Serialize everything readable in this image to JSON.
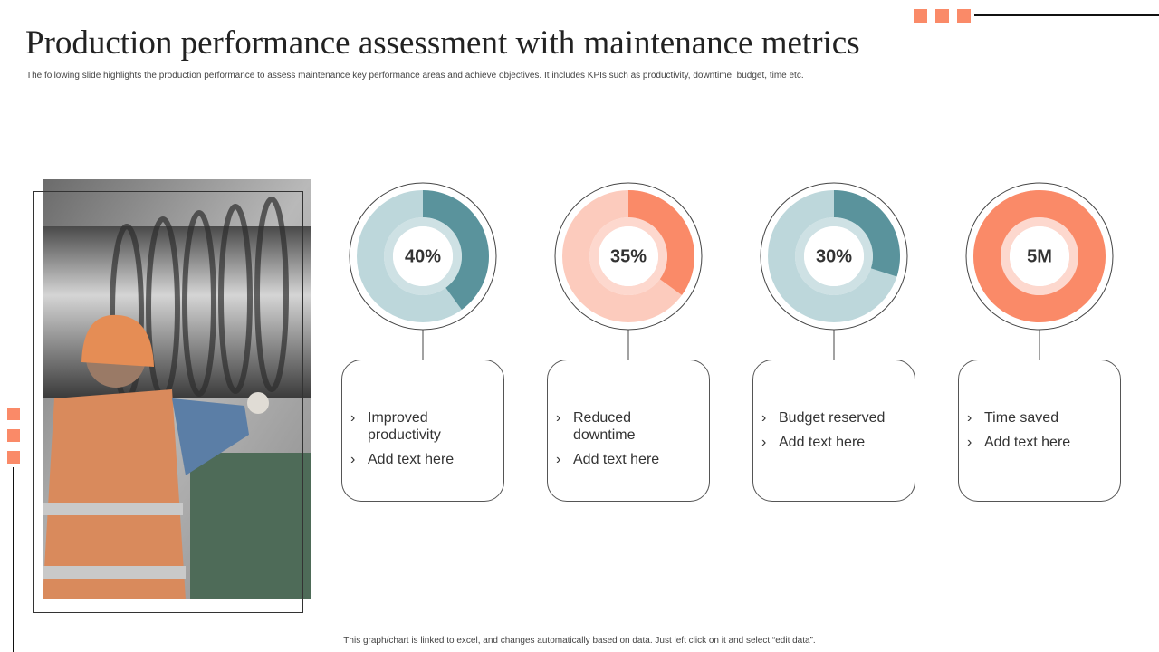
{
  "header": {
    "title": "Production performance assessment with maintenance metrics",
    "subtitle": "The following slide highlights the production performance to assess maintenance key performance areas and achieve objectives. It includes KPIs  such as productivity, downtime, budget, time etc."
  },
  "kpis": [
    {
      "type": "donut",
      "value": 40,
      "value_label": "40%",
      "ylim": [
        0,
        100
      ],
      "color": "#5a939c",
      "track_color": "#bdd7db",
      "items": [
        "Improved productivity",
        "Add text here"
      ]
    },
    {
      "type": "donut",
      "value": 35,
      "value_label": "35%",
      "ylim": [
        0,
        100
      ],
      "color": "#fa8a68",
      "track_color": "#fccbbd",
      "items": [
        "Reduced downtime",
        "Add text here"
      ]
    },
    {
      "type": "donut",
      "value": 30,
      "value_label": "30%",
      "ylim": [
        0,
        100
      ],
      "color": "#5a939c",
      "track_color": "#bdd7db",
      "items": [
        "Budget reserved",
        "Add text here"
      ]
    },
    {
      "type": "donut",
      "value": 5000000,
      "value_label": "5M",
      "ylim": [
        0,
        5000000
      ],
      "color": "#fa8a68",
      "track_color": "#fccbbd",
      "items": [
        "Time saved",
        "Add text here"
      ]
    }
  ],
  "footer": "This graph/chart is linked to excel, and changes automatically based on data. Just left click on it and select “edit data”."
}
